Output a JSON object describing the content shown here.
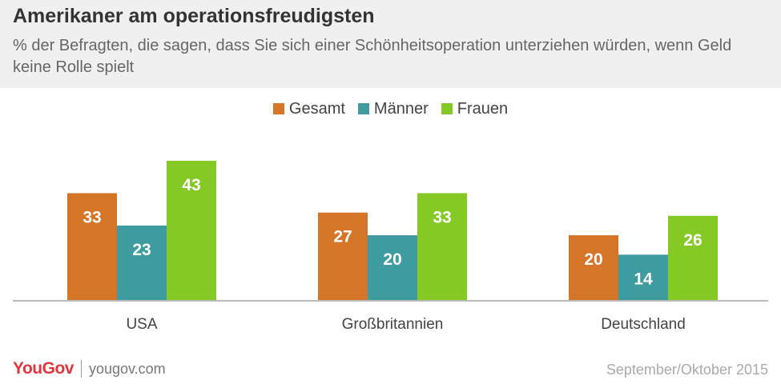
{
  "header": {
    "title": "Amerikaner am operationsfreudigsten",
    "subtitle": "% der Befragten, die sagen, dass Sie sich einer Schönheitsoperation unterziehen würden, wenn Geld keine Rolle spielt"
  },
  "chart_data": {
    "type": "bar",
    "title": "Amerikaner am operationsfreudigsten",
    "subtitle": "% der Befragten, die sagen, dass Sie sich einer Schönheitsoperation unterziehen würden, wenn Geld keine Rolle spielt",
    "categories": [
      "USA",
      "Großbritannien",
      "Deutschland"
    ],
    "series": [
      {
        "name": "Gesamt",
        "color": "#d57528",
        "values": [
          33,
          27,
          20
        ]
      },
      {
        "name": "Männer",
        "color": "#3e9ca0",
        "values": [
          23,
          20,
          14
        ]
      },
      {
        "name": "Frauen",
        "color": "#84c924",
        "values": [
          43,
          33,
          26
        ]
      }
    ],
    "ylim": [
      0,
      43
    ],
    "grid": false,
    "legend": "top-center",
    "data_labels": true
  },
  "footer": {
    "logo_text": "YouGov",
    "url": "yougov.com",
    "date": "September/Oktober 2015"
  },
  "colors": {
    "logo": "#e0373e",
    "label_text": "#ffffff"
  }
}
